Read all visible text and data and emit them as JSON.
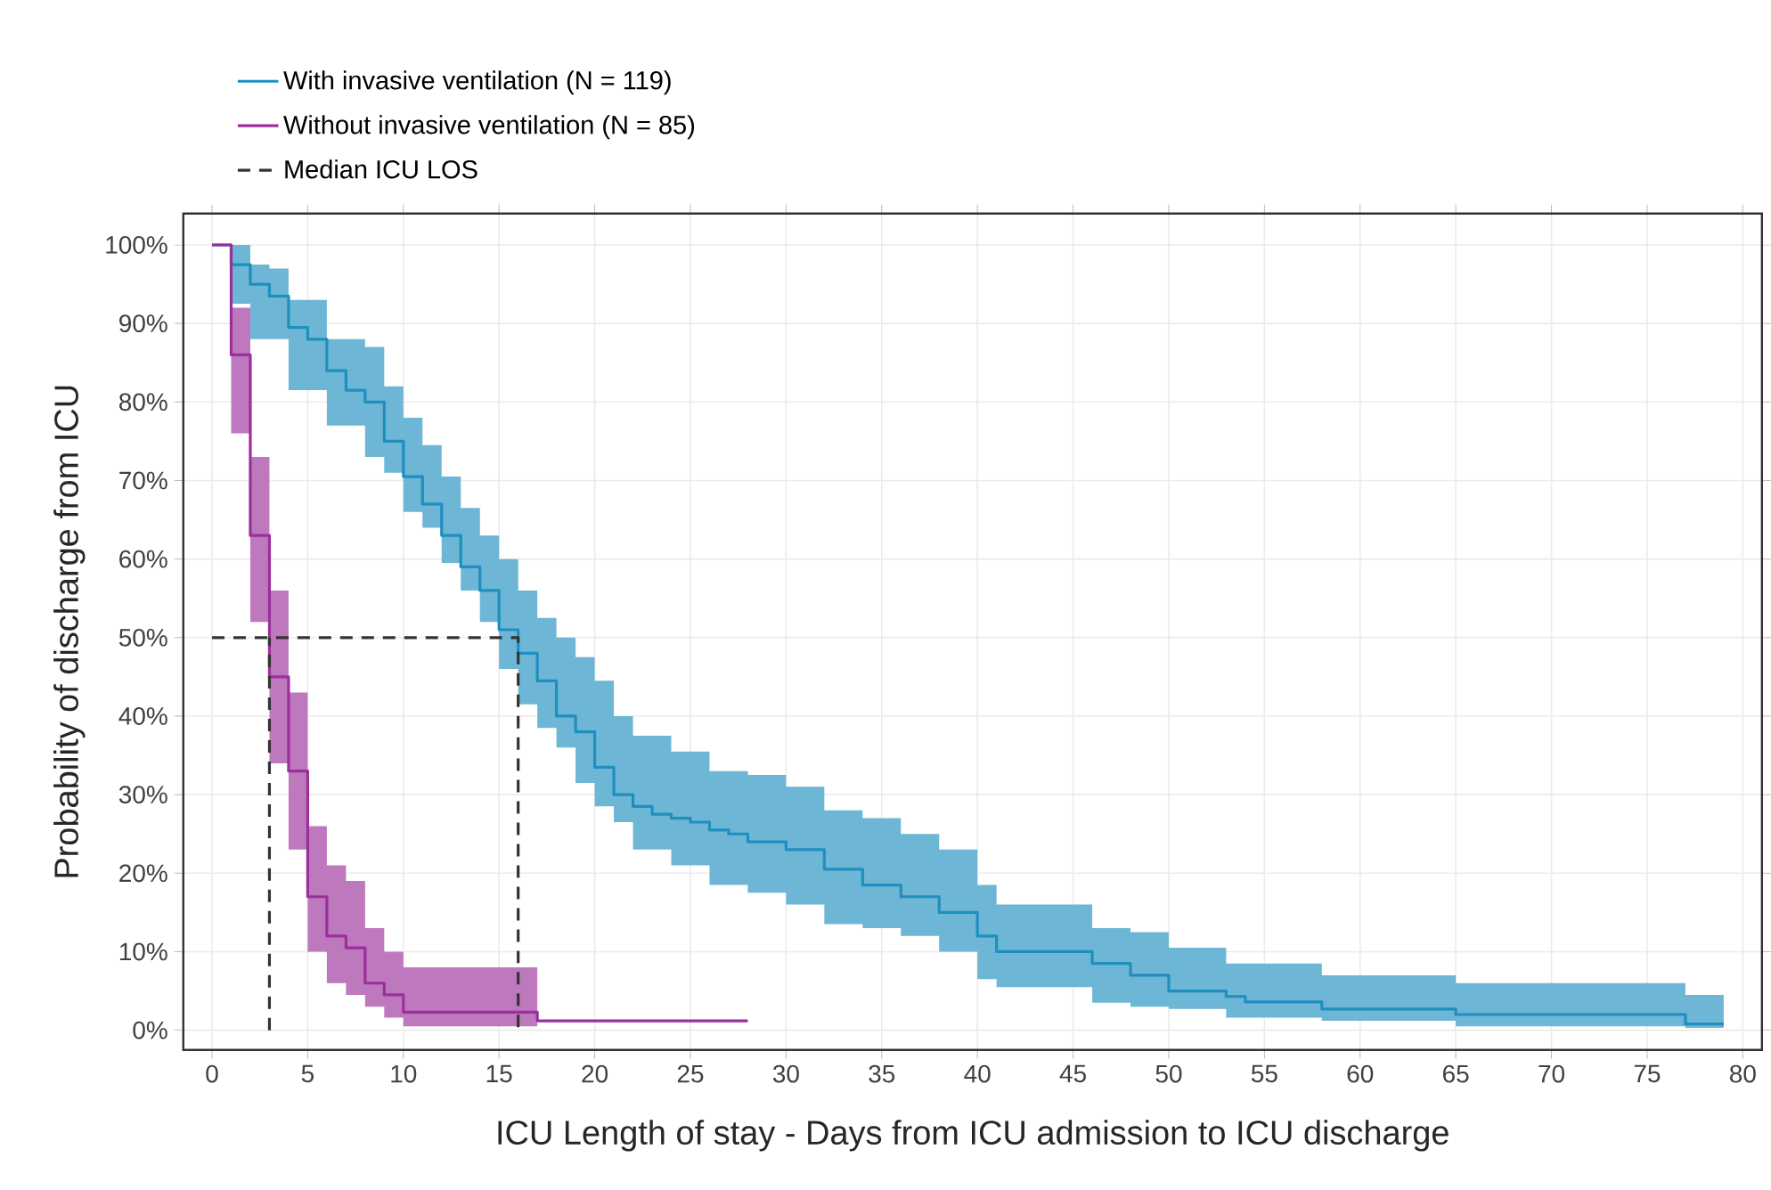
{
  "chart_data": {
    "type": "step",
    "xlabel": "ICU Length of stay - Days from ICU admission to ICU discharge",
    "ylabel": "Probability of discharge from ICU",
    "series": [
      {
        "name": "With invasive ventilation (N = 119)",
        "type": "step",
        "color": "#1f8fbf",
        "x": [
          0,
          1,
          2,
          3,
          4,
          5,
          6,
          7,
          8,
          9,
          10,
          11,
          12,
          13,
          14,
          15,
          16,
          17,
          18,
          19,
          20,
          21,
          22,
          23,
          24,
          25,
          26,
          27,
          28,
          30,
          32,
          34,
          36,
          38,
          40,
          41,
          46,
          48,
          50,
          53,
          54,
          58,
          65,
          77,
          79
        ],
        "values": [
          100,
          97.5,
          95,
          93.5,
          89.5,
          88,
          84,
          81.5,
          80,
          75,
          70.5,
          67,
          63,
          59,
          56,
          51,
          48,
          44.5,
          40,
          38,
          33.5,
          30,
          28.5,
          27.5,
          27,
          26.5,
          25.5,
          25,
          24,
          23,
          20.5,
          18.5,
          17,
          15,
          12,
          10,
          8.5,
          7,
          5,
          4.3,
          3.6,
          2.7,
          2,
          0.8,
          0.8
        ],
        "upper": [
          100,
          100,
          97.5,
          97,
          93,
          93,
          88,
          88,
          87,
          82,
          78,
          74.5,
          70.5,
          66.5,
          63,
          60,
          56,
          52.5,
          50,
          47.5,
          44.5,
          40,
          37.5,
          37.5,
          35.5,
          35.5,
          33,
          33,
          32.5,
          31,
          28,
          27,
          25,
          23,
          18.5,
          16,
          13,
          12.5,
          10.5,
          8.5,
          8.5,
          7,
          6,
          4.5,
          4.5
        ],
        "lower": [
          100,
          92.5,
          88,
          88,
          81.5,
          81.5,
          77,
          77,
          73,
          71,
          66,
          64,
          59.5,
          56,
          52,
          46,
          41.5,
          38.5,
          36,
          31.5,
          28.5,
          26.5,
          23,
          23,
          21,
          21,
          18.5,
          18.5,
          17.5,
          16,
          13.5,
          13,
          12,
          10,
          6.5,
          5.5,
          3.5,
          3,
          2.7,
          1.6,
          1.6,
          1.2,
          0.5,
          0.3,
          0.3
        ]
      },
      {
        "name": "Without invasive ventilation (N = 85)",
        "type": "step",
        "color": "#9b2f9b",
        "x": [
          0,
          1,
          2,
          3,
          4,
          5,
          6,
          7,
          8,
          9,
          10,
          17,
          28
        ],
        "values": [
          100,
          86,
          63,
          45,
          33,
          17,
          12,
          10.5,
          6,
          4.5,
          2.3,
          1.2,
          1.2
        ],
        "upper": [
          100,
          92,
          73,
          56,
          43,
          26,
          21,
          19,
          13,
          10,
          8,
          8,
          null
        ],
        "lower": [
          100,
          76,
          52,
          34,
          23,
          10,
          6,
          4.5,
          3,
          1.6,
          0.5,
          0.5,
          null
        ]
      },
      {
        "name": "Median ICU LOS",
        "type": "line",
        "color": "#333333",
        "line_style": "dashed",
        "x": [
          0,
          16,
          16
        ],
        "values": [
          50,
          50,
          0
        ]
      },
      {
        "type": "line",
        "color": "#333333",
        "line_style": "dashed",
        "x": [
          3,
          3
        ],
        "values": [
          0,
          50
        ]
      }
    ],
    "xlim": [
      -1.5,
      81
    ],
    "ylim": [
      -2.5,
      104
    ],
    "xticks": [
      0,
      5,
      10,
      15,
      20,
      25,
      30,
      35,
      40,
      45,
      50,
      55,
      60,
      65,
      70,
      75,
      80
    ],
    "yticks": [
      {
        "value": 0,
        "label": "0%"
      },
      {
        "value": 10,
        "label": "10%"
      },
      {
        "value": 20,
        "label": "20%"
      },
      {
        "value": 30,
        "label": "30%"
      },
      {
        "value": 40,
        "label": "40%"
      },
      {
        "value": 50,
        "label": "50%"
      },
      {
        "value": 60,
        "label": "60%"
      },
      {
        "value": 70,
        "label": "70%"
      },
      {
        "value": 80,
        "label": "80%"
      },
      {
        "value": 90,
        "label": "90%"
      },
      {
        "value": 100,
        "label": "100%"
      }
    ],
    "grid": true,
    "legend": "top left",
    "marker": "none"
  }
}
